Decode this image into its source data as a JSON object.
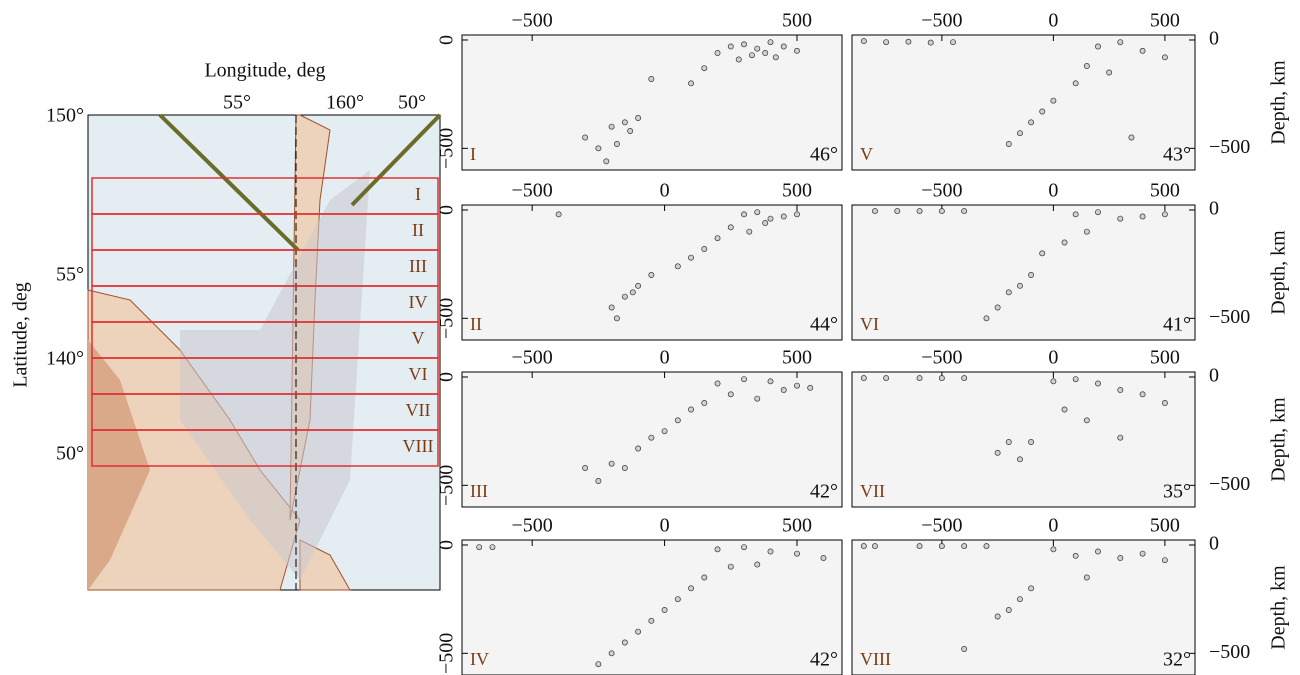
{
  "map": {
    "xlabel": "Longitude, deg",
    "ylabel": "Latitude, deg",
    "top_labels": [
      "55°",
      "160°",
      "50°"
    ],
    "left_labels": [
      "150°",
      "55°",
      "140°",
      "50°"
    ],
    "strips": [
      "I",
      "II",
      "III",
      "IV",
      "V",
      "VI",
      "VII",
      "VIII"
    ]
  },
  "chart_data": [
    {
      "type": "scatter",
      "label": "I",
      "angle": "46°",
      "color": "#d0d0d0",
      "x": [
        200,
        250,
        300,
        350,
        400,
        450,
        500,
        280,
        330,
        380,
        420,
        150,
        100,
        -50,
        -300,
        -200,
        -150,
        -100,
        -250,
        -180,
        -130,
        -220
      ],
      "values": [
        -60,
        -30,
        -20,
        -40,
        -10,
        -30,
        -50,
        -90,
        -70,
        -60,
        -80,
        -130,
        -200,
        -180,
        -450,
        -400,
        -380,
        -360,
        -500,
        -480,
        -420,
        -560
      ],
      "xlim": [
        -765,
        670
      ],
      "ylim": [
        -600,
        23
      ],
      "xticks": [
        {
          "value": -500,
          "label": "−500"
        },
        500
      ],
      "yticks": [
        0,
        {
          "value": -500,
          "label": "−500"
        }
      ]
    },
    {
      "type": "scatter",
      "label": "V",
      "angle": "43°",
      "color": "#d0d0d0",
      "ylabel": "Depth, km",
      "x": [
        -850,
        -750,
        -650,
        -550,
        -450,
        200,
        300,
        400,
        500,
        150,
        250,
        100,
        0,
        -50,
        -100,
        -150,
        -200,
        350
      ],
      "values": [
        -5,
        -10,
        -8,
        -12,
        -10,
        -30,
        -10,
        -50,
        -80,
        -120,
        -150,
        -200,
        -280,
        -330,
        -380,
        -430,
        -480,
        -450
      ],
      "xlim": [
        -903,
        635
      ],
      "ylim": [
        -600,
        23
      ],
      "xticks": [
        {
          "value": -500,
          "label": "−500"
        },
        0,
        500
      ],
      "yticks": [
        0,
        {
          "value": -500,
          "label": "−500"
        }
      ]
    },
    {
      "type": "scatter",
      "label": "II",
      "angle": "44°",
      "color": "#d0d0d0",
      "x": [
        300,
        350,
        400,
        450,
        500,
        250,
        320,
        380,
        200,
        150,
        100,
        50,
        -50,
        -100,
        -150,
        -200,
        -180,
        -120,
        -400
      ],
      "values": [
        -20,
        -10,
        -40,
        -30,
        -20,
        -80,
        -100,
        -60,
        -130,
        -180,
        -220,
        -260,
        -300,
        -350,
        -400,
        -450,
        -500,
        -380,
        -20
      ],
      "xlim": [
        -765,
        670
      ],
      "ylim": [
        -600,
        23
      ],
      "xticks": [
        {
          "value": -500,
          "label": "−500"
        },
        0,
        500
      ],
      "yticks": [
        0,
        {
          "value": -500,
          "label": "−500"
        }
      ]
    },
    {
      "type": "scatter",
      "label": "VI",
      "angle": "41°",
      "color": "#d0d0d0",
      "ylabel": "Depth, km",
      "x": [
        -800,
        -700,
        -600,
        -500,
        -400,
        100,
        200,
        300,
        400,
        500,
        150,
        50,
        -50,
        -100,
        -150,
        -200,
        -250,
        -300
      ],
      "values": [
        -5,
        -5,
        -5,
        -5,
        -5,
        -20,
        -10,
        -40,
        -30,
        -20,
        -100,
        -150,
        -200,
        -300,
        -350,
        -380,
        -450,
        -500
      ],
      "xlim": [
        -903,
        635
      ],
      "ylim": [
        -600,
        23
      ],
      "xticks": [
        {
          "value": -500,
          "label": "−500"
        },
        0,
        500
      ],
      "yticks": [
        0,
        {
          "value": -500,
          "label": "−500"
        }
      ]
    },
    {
      "type": "scatter",
      "label": "III",
      "angle": "42°",
      "color": "#d0d0d0",
      "x": [
        200,
        300,
        400,
        500,
        550,
        250,
        350,
        450,
        150,
        100,
        50,
        0,
        -50,
        -100,
        -200,
        -150,
        -250,
        -300
      ],
      "values": [
        -30,
        -10,
        -20,
        -40,
        -50,
        -80,
        -100,
        -60,
        -120,
        -150,
        -200,
        -250,
        -280,
        -330,
        -400,
        -420,
        -480,
        -420
      ],
      "xlim": [
        -765,
        670
      ],
      "ylim": [
        -600,
        23
      ],
      "xticks": [
        {
          "value": -500,
          "label": "−500"
        },
        0,
        500
      ],
      "yticks": [
        0,
        {
          "value": -500,
          "label": "−500"
        }
      ]
    },
    {
      "type": "scatter",
      "label": "VII",
      "angle": "35°",
      "color": "#d0d0d0",
      "ylabel": "Depth, km",
      "x": [
        -850,
        -750,
        -600,
        -500,
        -400,
        0,
        100,
        200,
        300,
        400,
        500,
        50,
        150,
        -200,
        -250,
        -150,
        -100,
        300
      ],
      "values": [
        -5,
        -5,
        -5,
        -5,
        -5,
        -20,
        -10,
        -30,
        -60,
        -80,
        -120,
        -150,
        -200,
        -300,
        -350,
        -380,
        -300,
        -280
      ],
      "xlim": [
        -903,
        635
      ],
      "ylim": [
        -600,
        23
      ],
      "xticks": [
        {
          "value": -500,
          "label": "−500"
        },
        0,
        500
      ],
      "yticks": [
        0,
        {
          "value": -500,
          "label": "−500"
        }
      ]
    },
    {
      "type": "scatter",
      "label": "IV",
      "angle": "42°",
      "color": "#d0d0d0",
      "x": [
        200,
        300,
        400,
        500,
        600,
        -700,
        -650,
        250,
        350,
        150,
        100,
        50,
        0,
        -50,
        -100,
        -150,
        -200,
        -250
      ],
      "values": [
        -20,
        -10,
        -30,
        -40,
        -60,
        -10,
        -10,
        -100,
        -90,
        -150,
        -200,
        -250,
        -300,
        -350,
        -400,
        -450,
        -500,
        -550
      ],
      "xlim": [
        -765,
        670
      ],
      "ylim": [
        -600,
        23
      ],
      "xticks": [
        {
          "value": -500,
          "label": "−500"
        },
        0,
        500
      ],
      "yticks": [
        0,
        {
          "value": -500,
          "label": "−500"
        }
      ]
    },
    {
      "type": "scatter",
      "label": "VIII",
      "angle": "32°",
      "color": "#d0d0d0",
      "ylabel": "Depth, km",
      "x": [
        -850,
        -800,
        -600,
        -500,
        -400,
        -300,
        0,
        100,
        200,
        300,
        400,
        500,
        150,
        -100,
        -150,
        -200,
        -250,
        -400
      ],
      "values": [
        -5,
        -5,
        -5,
        -5,
        -5,
        -5,
        -20,
        -50,
        -30,
        -60,
        -40,
        -70,
        -150,
        -200,
        -250,
        -300,
        -330,
        -480
      ],
      "xlim": [
        -903,
        635
      ],
      "ylim": [
        -600,
        23
      ],
      "xticks": [
        {
          "value": -500,
          "label": "−500"
        },
        0,
        500
      ],
      "yticks": [
        0,
        {
          "value": -500,
          "label": "−500"
        }
      ]
    }
  ]
}
